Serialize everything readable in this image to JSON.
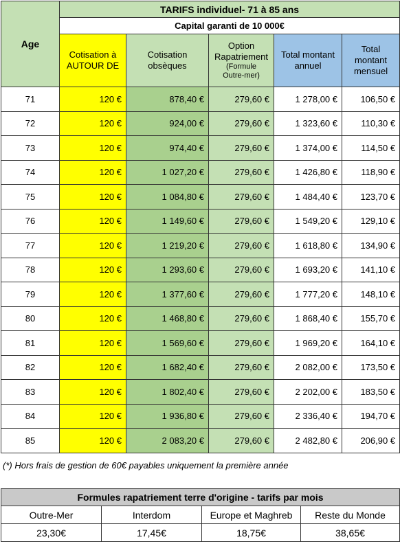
{
  "tarifs": {
    "title": "TARIFS individuel- 71 à 85 ans",
    "capital": "Capital garanti de 10 000€",
    "headers": {
      "age": "Age",
      "cotisation_autour_line1": "Cotisation à",
      "cotisation_autour_line2": "AUTOUR DE",
      "cotisation_obseques_line1": "Cotisation",
      "cotisation_obseques_line2": "obsèques",
      "option_line1": "Option",
      "option_line2": "Rapatriement",
      "option_small1": "(Formule",
      "option_small2": "Outre-mer)",
      "total_annuel_line1": "Total montant",
      "total_annuel_line2": "annuel",
      "total_mensuel_line1": "Total",
      "total_mensuel_line2": "montant",
      "total_mensuel_line3": "mensuel"
    },
    "rows": [
      {
        "age": "71",
        "autour": "120 €",
        "obseques": "878,40 €",
        "rapatriement": "279,60 €",
        "annuel": "1 278,00 €",
        "mensuel": "106,50 €"
      },
      {
        "age": "72",
        "autour": "120 €",
        "obseques": "924,00 €",
        "rapatriement": "279,60 €",
        "annuel": "1 323,60 €",
        "mensuel": "110,30 €"
      },
      {
        "age": "73",
        "autour": "120 €",
        "obseques": "974,40 €",
        "rapatriement": "279,60 €",
        "annuel": "1 374,00 €",
        "mensuel": "114,50 €"
      },
      {
        "age": "74",
        "autour": "120 €",
        "obseques": "1 027,20 €",
        "rapatriement": "279,60 €",
        "annuel": "1 426,80 €",
        "mensuel": "118,90 €"
      },
      {
        "age": "75",
        "autour": "120 €",
        "obseques": "1 084,80 €",
        "rapatriement": "279,60 €",
        "annuel": "1 484,40 €",
        "mensuel": "123,70 €"
      },
      {
        "age": "76",
        "autour": "120 €",
        "obseques": "1 149,60 €",
        "rapatriement": "279,60 €",
        "annuel": "1 549,20 €",
        "mensuel": "129,10 €"
      },
      {
        "age": "77",
        "autour": "120 €",
        "obseques": "1 219,20 €",
        "rapatriement": "279,60 €",
        "annuel": "1 618,80 €",
        "mensuel": "134,90 €"
      },
      {
        "age": "78",
        "autour": "120 €",
        "obseques": "1 293,60 €",
        "rapatriement": "279,60 €",
        "annuel": "1 693,20 €",
        "mensuel": "141,10 €"
      },
      {
        "age": "79",
        "autour": "120 €",
        "obseques": "1 377,60 €",
        "rapatriement": "279,60 €",
        "annuel": "1 777,20 €",
        "mensuel": "148,10 €"
      },
      {
        "age": "80",
        "autour": "120 €",
        "obseques": "1 468,80 €",
        "rapatriement": "279,60 €",
        "annuel": "1 868,40 €",
        "mensuel": "155,70 €"
      },
      {
        "age": "81",
        "autour": "120 €",
        "obseques": "1 569,60 €",
        "rapatriement": "279,60 €",
        "annuel": "1 969,20 €",
        "mensuel": "164,10 €"
      },
      {
        "age": "82",
        "autour": "120 €",
        "obseques": "1 682,40 €",
        "rapatriement": "279,60 €",
        "annuel": "2 082,00 €",
        "mensuel": "173,50 €"
      },
      {
        "age": "83",
        "autour": "120 €",
        "obseques": "1 802,40 €",
        "rapatriement": "279,60 €",
        "annuel": "2 202,00 €",
        "mensuel": "183,50 €"
      },
      {
        "age": "84",
        "autour": "120 €",
        "obseques": "1 936,80 €",
        "rapatriement": "279,60 €",
        "annuel": "2 336,40 €",
        "mensuel": "194,70 €"
      },
      {
        "age": "85",
        "autour": "120 €",
        "obseques": "2 083,20 €",
        "rapatriement": "279,60 €",
        "annuel": "2 482,80 €",
        "mensuel": "206,90 €"
      }
    ]
  },
  "note": "(*) Hors frais de gestion de 60€ payables uniquement la première année",
  "formules": {
    "title": "Formules rapatriement terre d'origine - tarifs par mois",
    "headers": [
      "Outre-Mer",
      "Interdom",
      "Europe et Maghreb",
      "Reste du Monde"
    ],
    "values": [
      "23,30€",
      "17,45€",
      "18,75€",
      "38,65€"
    ]
  },
  "colors": {
    "yellow": "#ffff00",
    "light_green": "#c4e0b4",
    "green": "#a9d08e",
    "blue": "#9dc3e6",
    "grey": "#c9c9c9"
  }
}
